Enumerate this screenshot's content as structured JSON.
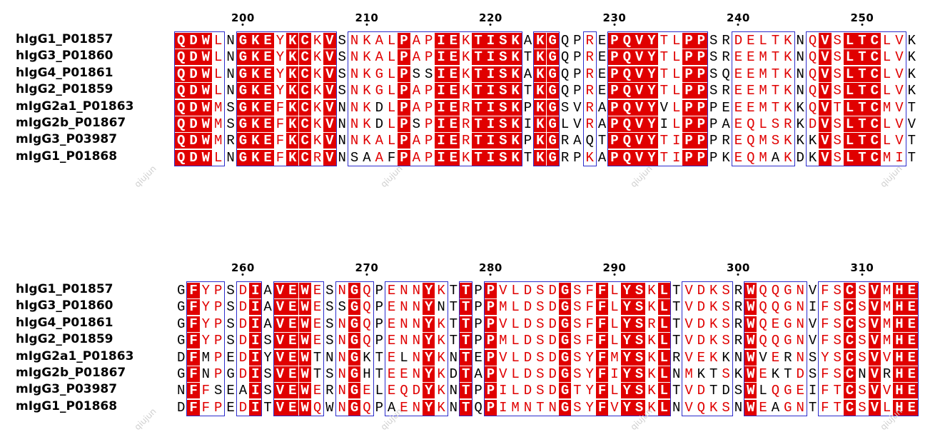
{
  "blocks": [
    {
      "ruler": [
        "200",
        "210",
        "220",
        "230",
        "240",
        "250"
      ],
      "rows": [
        {
          "name": "hIgG1_P01857",
          "seq": "QDWLNGKEYKCKVSNKALPAPIEKTISKAKGQPREPQVYTLPPSRDELTKNQVSLTCLVK"
        },
        {
          "name": "hIgG3_P01860",
          "seq": "QDWLNGKEYKCKVSNKALPAPIEKTISKTKGQPREPQVYTLPPSREEMTKNQVSLTCLVK"
        },
        {
          "name": "hIgG4_P01861",
          "seq": "QDWLNGKEYKCKVSNKGLPSSIEKTISKAKGQPREPQVYTLPPSQEEMTKNQVSLTCLVK"
        },
        {
          "name": "hIgG2_P01859",
          "seq": "QDWLNGKEYKCKVSNKGLPAPIEKTISKTKGQPREPQVYTLPPSREEMTKNQVSLTCLVK"
        },
        {
          "name": "mIgG2a1_P01863",
          "seq": "QDWMSGKEFKCKVNNKDLPAPIERTISKPKGSVRAPQVYVLPPPEEEMTKKQVTLTCMVT"
        },
        {
          "name": "mIgG2b_P01867",
          "seq": "QDWMSGKEFKCKVNNKDLPSPIERTISKIKGLVRAPQVYILPPPAEQLSRKDVSLTCLVV"
        },
        {
          "name": "mIgG3_P03987",
          "seq": "QDWMRGKEFKCKVNNKALPAPIERTISKPKGRAQTPQVYTIPPPREQMSKKKVSLTCLVT"
        },
        {
          "name": "mIgG1_P01868",
          "seq": "QDWLNGKEFKCRVNSAAFPAPIEKTISKTKGRPKAPQVYTIPPPKEQMAKDKVSLTCMIT"
        }
      ]
    },
    {
      "ruler": [
        "260",
        "270",
        "280",
        "290",
        "300",
        "310"
      ],
      "rows": [
        {
          "name": "hIgG1_P01857",
          "seq": "GFYPSDIAVEWESNGQPENNYKTTPPVLDSDGSFFLYSKLTVDKSRWQQGNVFSCSVMHE"
        },
        {
          "name": "hIgG3_P01860",
          "seq": "GFYPSDIAVEWESSGQPENNYNTTPPMLDSDGSFFLYSKLTVDKSRWQQGNIFSCSVMHE"
        },
        {
          "name": "hIgG4_P01861",
          "seq": "GFYPSDIAVEWESNGQPENNYKTTPPVLDSDGSFFLYSRLTVDKSRWQEGNVFSCSVMHE"
        },
        {
          "name": "hIgG2_P01859",
          "seq": "GFYPSDISVEWESNGQPENNYKTTPPMLDSDGSFFLYSKLTVDKSRWQQGNVFSCSVMHE"
        },
        {
          "name": "mIgG2a1_P01863",
          "seq": "DFMPEDIYVEWTNNGKTELNYKNTEPVLDSDGSYFMYSKLRVEKKNWVERNSYSCSVVHE"
        },
        {
          "name": "mIgG2b_P01867",
          "seq": "GFNPGDISVEWTSNGHTEENYKDTAPVLDSDGSYFIYSKLNMKTSKWEKTDSFSCNVRHE"
        },
        {
          "name": "mIgG3_P03987",
          "seq": "NFFSEAISVEWERNGELEQDYKNTPPILDSDGTYFLYSKLTVDTDSWLQGEIFTCSVVHE"
        },
        {
          "name": "mIgG1_P01868",
          "seq": "DFFPEDITVEWQWNGQPAENYKNTQPIMNTNGSYFVYSKLNVQKSNWEAGNTFTCSVLHE"
        }
      ]
    }
  ],
  "watermark": "qiujun",
  "colors": {
    "conserved_bg": "#e00000",
    "similar_text": "#e00000",
    "box_border": "#2d2dcc",
    "plain_text": "#000000"
  }
}
